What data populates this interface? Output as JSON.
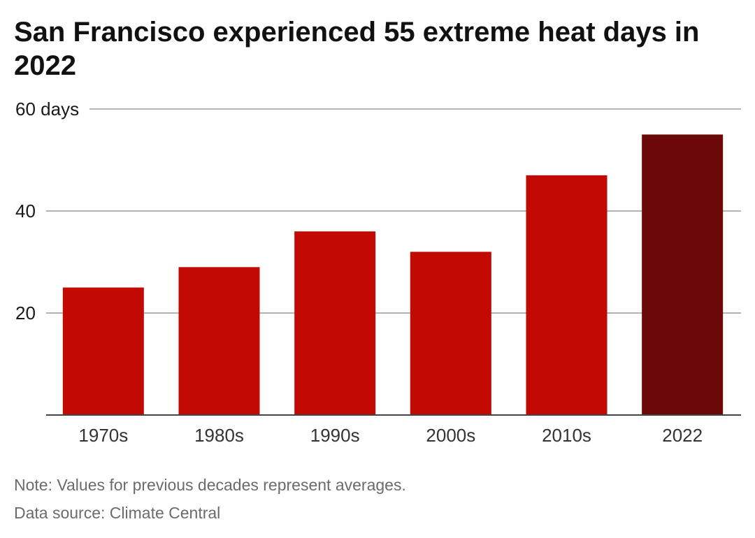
{
  "chart_data": {
    "type": "bar",
    "title": "San Francisco experienced 55 extreme heat days in 2022",
    "categories": [
      "1970s",
      "1980s",
      "1990s",
      "2000s",
      "2010s",
      "2022"
    ],
    "values": [
      25,
      29,
      36,
      32,
      47,
      55
    ],
    "ylim": [
      0,
      60
    ],
    "yticks": [
      {
        "value": 20,
        "label": "20"
      },
      {
        "value": 40,
        "label": "40"
      },
      {
        "value": 60,
        "label": "60 days"
      }
    ],
    "grid": true,
    "colors": {
      "default": "#c20a02",
      "highlight": "#6b0909"
    },
    "highlight_category": "2022"
  },
  "notes": {
    "note": "Note: Values for previous decades represent averages.",
    "source": "Data source: Climate Central"
  }
}
